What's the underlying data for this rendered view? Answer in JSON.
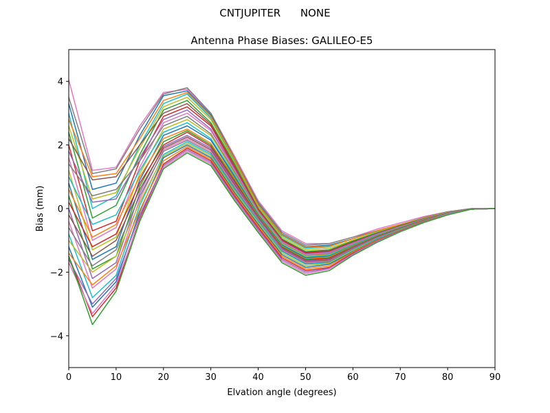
{
  "chart_data": {
    "type": "line",
    "suptitle": "CNTJUPITER      NONE",
    "title": "Antenna Phase Biases: GALILEO-E5",
    "xlabel": "Elvation angle (degrees)",
    "ylabel": "Bias (mm)",
    "xlim": [
      0,
      90
    ],
    "ylim": [
      -5,
      5
    ],
    "xticks": [
      0,
      10,
      20,
      30,
      40,
      50,
      60,
      70,
      80,
      90
    ],
    "yticks": [
      -4,
      -2,
      0,
      2,
      4
    ],
    "grid": false,
    "legend": "none",
    "x": [
      0,
      5,
      10,
      15,
      20,
      25,
      30,
      35,
      40,
      45,
      50,
      55,
      60,
      65,
      70,
      75,
      80,
      85,
      90
    ],
    "series": [
      {
        "values": [
          4.05,
          1.2,
          1.3,
          2.6,
          3.65,
          3.75,
          3.0,
          1.65,
          0.25,
          -0.7,
          -1.1,
          -1.1,
          -0.9,
          -0.65,
          -0.45,
          -0.25,
          -0.1,
          0.0,
          0.0
        ],
        "color": "#e377c2"
      },
      {
        "values": [
          3.5,
          1.1,
          1.25,
          2.5,
          3.6,
          3.8,
          3.0,
          1.6,
          0.2,
          -0.75,
          -1.15,
          -1.1,
          -0.9,
          -0.7,
          -0.5,
          -0.28,
          -0.1,
          0.0,
          0.0
        ],
        "color": "#7f7f7f"
      },
      {
        "values": [
          3.3,
          0.6,
          0.8,
          2.3,
          3.55,
          3.7,
          2.95,
          1.55,
          0.15,
          -0.8,
          -1.2,
          -1.15,
          -0.95,
          -0.7,
          -0.5,
          -0.3,
          -0.12,
          -0.02,
          0.0
        ],
        "color": "#1f77b4"
      },
      {
        "values": [
          3.0,
          0.0,
          0.4,
          2.0,
          3.3,
          3.6,
          2.85,
          1.5,
          0.1,
          -0.85,
          -1.25,
          -1.2,
          -0.95,
          -0.72,
          -0.5,
          -0.3,
          -0.12,
          -0.02,
          0.0
        ],
        "color": "#17becf"
      },
      {
        "values": [
          2.8,
          1.0,
          1.1,
          2.2,
          3.4,
          3.65,
          2.9,
          1.55,
          0.12,
          -0.82,
          -1.22,
          -1.18,
          -0.95,
          -0.7,
          -0.5,
          -0.3,
          -0.12,
          -0.02,
          0.0
        ],
        "color": "#ff7f0e"
      },
      {
        "values": [
          2.6,
          0.3,
          0.5,
          1.9,
          3.2,
          3.5,
          2.8,
          1.45,
          0.05,
          -0.9,
          -1.3,
          -1.25,
          -1.0,
          -0.75,
          -0.52,
          -0.3,
          -0.12,
          -0.02,
          0.0
        ],
        "color": "#bcbd22"
      },
      {
        "values": [
          2.4,
          -0.3,
          0.1,
          1.7,
          3.1,
          3.4,
          2.7,
          1.4,
          0.0,
          -0.95,
          -1.35,
          -1.3,
          -1.02,
          -0.77,
          -0.53,
          -0.32,
          -0.13,
          -0.02,
          0.0
        ],
        "color": "#2ca02c"
      },
      {
        "values": [
          2.2,
          0.9,
          1.0,
          2.0,
          3.0,
          3.3,
          2.65,
          1.35,
          -0.02,
          -0.98,
          -1.38,
          -1.32,
          -1.05,
          -0.78,
          -0.54,
          -0.32,
          -0.13,
          -0.02,
          0.0
        ],
        "color": "#8c564b"
      },
      {
        "values": [
          2.0,
          -0.7,
          -0.4,
          1.5,
          2.9,
          3.2,
          2.6,
          1.3,
          -0.05,
          -1.0,
          -1.4,
          -1.35,
          -1.07,
          -0.8,
          -0.55,
          -0.33,
          -0.14,
          -0.02,
          0.0
        ],
        "color": "#d62728"
      },
      {
        "values": [
          1.8,
          0.2,
          0.3,
          1.6,
          2.8,
          3.1,
          2.5,
          1.25,
          -0.08,
          -1.03,
          -1.43,
          -1.37,
          -1.08,
          -0.8,
          -0.56,
          -0.33,
          -0.14,
          -0.02,
          0.0
        ],
        "color": "#9467bd"
      },
      {
        "values": [
          1.6,
          -1.0,
          -0.6,
          1.3,
          2.7,
          3.0,
          2.45,
          1.2,
          -0.1,
          -1.05,
          -1.45,
          -1.4,
          -1.1,
          -0.82,
          -0.57,
          -0.34,
          -0.14,
          -0.02,
          0.0
        ],
        "color": "#e377c2"
      },
      {
        "values": [
          1.4,
          0.4,
          0.6,
          1.5,
          2.6,
          2.9,
          2.35,
          1.15,
          -0.13,
          -1.08,
          -1.48,
          -1.42,
          -1.12,
          -0.83,
          -0.58,
          -0.34,
          -0.15,
          -0.02,
          0.0
        ],
        "color": "#7f7f7f"
      },
      {
        "values": [
          1.2,
          -1.3,
          -0.9,
          1.1,
          2.5,
          2.8,
          2.3,
          1.1,
          -0.15,
          -1.1,
          -1.5,
          -1.45,
          -1.14,
          -0.85,
          -0.59,
          -0.35,
          -0.15,
          -0.02,
          0.0
        ],
        "color": "#bcbd22"
      },
      {
        "values": [
          1.0,
          -0.5,
          -0.2,
          1.2,
          2.4,
          2.7,
          2.2,
          1.05,
          -0.18,
          -1.13,
          -1.53,
          -1.47,
          -1.15,
          -0.86,
          -0.6,
          -0.35,
          -0.15,
          -0.02,
          0.0
        ],
        "color": "#17becf"
      },
      {
        "values": [
          0.8,
          -1.6,
          -1.2,
          0.9,
          2.3,
          2.6,
          2.15,
          1.0,
          -0.2,
          -1.15,
          -1.55,
          -1.5,
          -1.17,
          -0.87,
          -0.6,
          -0.36,
          -0.15,
          -0.02,
          0.0
        ],
        "color": "#1f77b4"
      },
      {
        "values": [
          0.6,
          -0.9,
          -0.5,
          1.0,
          2.2,
          2.5,
          2.05,
          0.95,
          -0.23,
          -1.18,
          -1.58,
          -1.52,
          -1.18,
          -0.88,
          -0.61,
          -0.36,
          -0.16,
          -0.02,
          0.0
        ],
        "color": "#ff7f0e"
      },
      {
        "values": [
          0.4,
          -1.9,
          -1.5,
          0.7,
          2.1,
          2.45,
          2.0,
          0.9,
          -0.25,
          -1.2,
          -1.6,
          -1.55,
          -1.2,
          -0.89,
          -0.62,
          -0.37,
          -0.16,
          -0.02,
          0.0
        ],
        "color": "#2ca02c"
      },
      {
        "values": [
          0.2,
          -1.2,
          -0.8,
          0.8,
          2.0,
          2.4,
          1.95,
          0.85,
          -0.28,
          -1.23,
          -1.63,
          -1.57,
          -1.22,
          -0.9,
          -0.63,
          -0.37,
          -0.16,
          -0.02,
          0.0
        ],
        "color": "#d62728"
      },
      {
        "values": [
          0.0,
          -2.2,
          -1.7,
          0.5,
          1.95,
          2.3,
          1.9,
          0.8,
          -0.3,
          -1.25,
          -1.65,
          -1.6,
          -1.23,
          -0.91,
          -0.63,
          -0.38,
          -0.16,
          -0.02,
          0.0
        ],
        "color": "#9467bd"
      },
      {
        "values": [
          -0.2,
          -1.5,
          -1.0,
          0.6,
          1.9,
          2.25,
          1.85,
          0.75,
          -0.33,
          -1.28,
          -1.68,
          -1.62,
          -1.25,
          -0.92,
          -0.64,
          -0.38,
          -0.17,
          -0.02,
          0.0
        ],
        "color": "#8c564b"
      },
      {
        "values": [
          -0.4,
          -2.5,
          -1.9,
          0.3,
          1.85,
          2.2,
          1.8,
          0.7,
          -0.35,
          -1.3,
          -1.7,
          -1.65,
          -1.27,
          -0.93,
          -0.65,
          -0.39,
          -0.17,
          -0.02,
          0.0
        ],
        "color": "#e377c2"
      },
      {
        "values": [
          -0.6,
          -1.8,
          -1.3,
          0.4,
          1.8,
          2.15,
          1.75,
          0.65,
          -0.38,
          -1.33,
          -1.73,
          -1.67,
          -1.28,
          -0.94,
          -0.65,
          -0.39,
          -0.17,
          -0.02,
          0.0
        ],
        "color": "#7f7f7f"
      },
      {
        "values": [
          -0.8,
          -2.8,
          -2.1,
          0.1,
          1.7,
          2.1,
          1.7,
          0.6,
          -0.4,
          -1.35,
          -1.75,
          -1.7,
          -1.3,
          -0.95,
          -0.66,
          -0.4,
          -0.17,
          -0.02,
          0.0
        ],
        "color": "#17becf"
      },
      {
        "values": [
          -1.0,
          -2.0,
          -1.5,
          0.2,
          1.65,
          2.05,
          1.65,
          0.55,
          -0.45,
          -1.4,
          -1.8,
          -1.72,
          -1.32,
          -0.97,
          -0.67,
          -0.4,
          -0.18,
          -0.02,
          0.0
        ],
        "color": "#bcbd22"
      },
      {
        "values": [
          -1.2,
          -3.1,
          -2.3,
          -0.1,
          1.6,
          2.0,
          1.6,
          0.5,
          -0.5,
          -1.45,
          -1.85,
          -1.75,
          -1.35,
          -0.98,
          -0.68,
          -0.41,
          -0.18,
          -0.02,
          0.0
        ],
        "color": "#1f77b4"
      },
      {
        "values": [
          -1.4,
          -2.4,
          -1.8,
          -0.05,
          1.5,
          1.95,
          1.55,
          0.45,
          -0.55,
          -1.5,
          -1.9,
          -1.8,
          -1.37,
          -1.0,
          -0.69,
          -0.42,
          -0.18,
          -0.02,
          0.0
        ],
        "color": "#ff7f0e"
      },
      {
        "values": [
          -1.5,
          -3.4,
          -2.5,
          -0.3,
          1.4,
          1.9,
          1.5,
          0.4,
          -0.6,
          -1.55,
          -1.95,
          -1.85,
          -1.4,
          -1.02,
          -0.7,
          -0.42,
          -0.19,
          -0.02,
          0.0
        ],
        "color": "#d62728"
      },
      {
        "values": [
          -1.6,
          -3.0,
          -2.2,
          -0.2,
          1.35,
          1.85,
          1.45,
          0.35,
          -0.65,
          -1.6,
          -2.0,
          -1.88,
          -1.42,
          -1.03,
          -0.71,
          -0.43,
          -0.19,
          -0.02,
          0.0
        ],
        "color": "#9467bd"
      },
      {
        "values": [
          -1.7,
          -3.3,
          -2.4,
          -0.35,
          1.3,
          1.8,
          1.4,
          0.3,
          -0.7,
          -1.65,
          -2.05,
          -1.9,
          -1.45,
          -1.05,
          -0.72,
          -0.43,
          -0.19,
          -0.02,
          0.0
        ],
        "color": "#e377c2"
      },
      {
        "values": [
          -1.5,
          -3.65,
          -2.6,
          -0.4,
          1.25,
          1.75,
          1.35,
          0.25,
          -0.75,
          -1.7,
          -2.1,
          -1.95,
          -1.47,
          -1.07,
          -0.73,
          -0.44,
          -0.2,
          -0.02,
          0.0
        ],
        "color": "#2ca02c"
      }
    ]
  }
}
